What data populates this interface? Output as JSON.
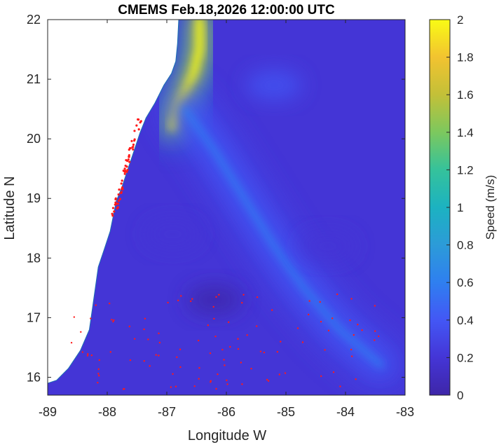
{
  "chart_data": {
    "type": "heatmap",
    "title": "CMEMS Feb.18,2026 12:00:00 UTC",
    "xlabel": "Longitude W",
    "ylabel": "Latitude N",
    "xlim": [
      -89,
      -83
    ],
    "ylim": [
      15.7,
      22
    ],
    "x_ticks": [
      -89,
      -88,
      -87,
      -86,
      -85,
      -84,
      -83
    ],
    "y_ticks": [
      16,
      17,
      18,
      19,
      20,
      21,
      22
    ],
    "x_tick_labels": [
      "-89",
      "-88",
      "-87",
      "-86",
      "-85",
      "-84",
      "-83"
    ],
    "y_tick_labels": [
      "16",
      "17",
      "18",
      "19",
      "20",
      "21",
      "22"
    ],
    "colorbar": {
      "label": "Speed (m/s)",
      "range": [
        0,
        2
      ],
      "ticks": [
        0,
        0.2,
        0.4,
        0.6,
        0.8,
        1,
        1.2,
        1.4,
        1.6,
        1.8,
        2
      ],
      "tick_labels": [
        "0",
        "0.2",
        "0.4",
        "0.6",
        "0.8",
        "1",
        "1.2",
        "1.4",
        "1.6",
        "1.8",
        "2"
      ],
      "colormap": [
        "#3e26a8",
        "#4435d6",
        "#4357f5",
        "#2f7ff0",
        "#2c9bd8",
        "#1cb2c1",
        "#35c29b",
        "#7cc85e",
        "#c3c038",
        "#f2c330",
        "#f9fb15"
      ]
    },
    "background_speed": 0.15,
    "features": [
      {
        "name": "yucatan-current-core",
        "type": "jet",
        "lon_lat_path": [
          [
            -86.45,
            22.0
          ],
          [
            -86.45,
            21.5
          ],
          [
            -86.55,
            21.1
          ],
          [
            -86.8,
            20.6
          ],
          [
            -86.9,
            20.2
          ]
        ],
        "speed": 1.9
      },
      {
        "name": "current-filament",
        "type": "jet",
        "lon_lat_path": [
          [
            -86.7,
            20.5
          ],
          [
            -86.2,
            19.8
          ],
          [
            -85.7,
            19.0
          ],
          [
            -85.2,
            18.2
          ],
          [
            -84.7,
            17.5
          ],
          [
            -84.1,
            16.8
          ],
          [
            -83.4,
            16.2
          ]
        ],
        "speed": 0.55
      },
      {
        "name": "eddy-1",
        "type": "eddy",
        "center": [
          -85.2,
          20.9
        ],
        "speed": 0.35
      },
      {
        "name": "eddy-2",
        "type": "eddy",
        "center": [
          -84.3,
          18.2
        ],
        "speed": 0.1
      },
      {
        "name": "eddy-3",
        "type": "eddy",
        "center": [
          -86.9,
          18.4
        ],
        "speed": 0.1
      },
      {
        "name": "eddy-4",
        "type": "eddy",
        "center": [
          -86.2,
          17.3
        ],
        "speed": 0.08
      }
    ],
    "land_mask_polygon": [
      [
        -89,
        22
      ],
      [
        -86.8,
        22
      ],
      [
        -86.82,
        21.6
      ],
      [
        -86.85,
        21.3
      ],
      [
        -86.92,
        21.1
      ],
      [
        -87.05,
        20.9
      ],
      [
        -87.2,
        20.6
      ],
      [
        -87.35,
        20.35
      ],
      [
        -87.45,
        20.1
      ],
      [
        -87.55,
        19.8
      ],
      [
        -87.65,
        19.5
      ],
      [
        -87.75,
        19.2
      ],
      [
        -87.85,
        18.95
      ],
      [
        -87.9,
        18.7
      ],
      [
        -87.95,
        18.45
      ],
      [
        -88.05,
        18.15
      ],
      [
        -88.15,
        17.85
      ],
      [
        -88.2,
        17.5
      ],
      [
        -88.25,
        17.15
      ],
      [
        -88.3,
        16.8
      ],
      [
        -88.45,
        16.45
      ],
      [
        -88.65,
        16.15
      ],
      [
        -88.85,
        15.95
      ],
      [
        -89,
        15.9
      ]
    ],
    "annotations": {
      "red_points": "sargassum/marker points along coast and scattered in southern region"
    }
  }
}
